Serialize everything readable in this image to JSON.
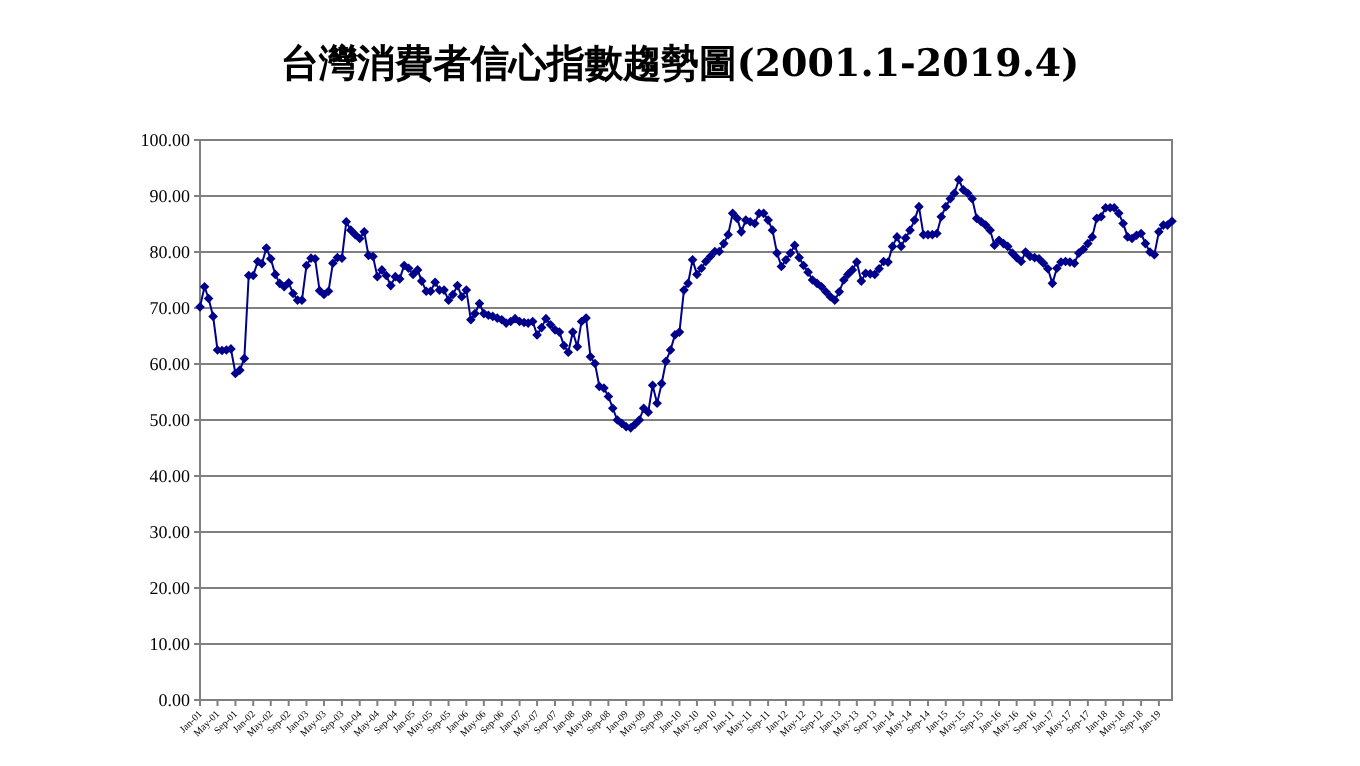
{
  "chart_data": {
    "type": "line",
    "title": "台灣消費者信心指數趨勢圖(2001.1-2019.4)",
    "xlim": [
      "2001-01",
      "2019-04"
    ],
    "xticks": [
      {
        "value": "2001-01",
        "label": "Jan-01"
      },
      {
        "value": "2001-05",
        "label": "May-01"
      },
      {
        "value": "2001-09",
        "label": "Sep-01"
      },
      {
        "value": "2002-01",
        "label": "Jan-02"
      },
      {
        "value": "2002-05",
        "label": "May-02"
      },
      {
        "value": "2002-09",
        "label": "Sep-02"
      },
      {
        "value": "2003-01",
        "label": "Jan-03"
      },
      {
        "value": "2003-05",
        "label": "May-03"
      },
      {
        "value": "2003-09",
        "label": "Sep-03"
      },
      {
        "value": "2004-01",
        "label": "Jan-04"
      },
      {
        "value": "2004-05",
        "label": "May-04"
      },
      {
        "value": "2004-09",
        "label": "Sep-04"
      },
      {
        "value": "2005-01",
        "label": "Jan-05"
      },
      {
        "value": "2005-05",
        "label": "May-05"
      },
      {
        "value": "2005-09",
        "label": "Sep-05"
      },
      {
        "value": "2006-01",
        "label": "Jan-06"
      },
      {
        "value": "2006-05",
        "label": "May-06"
      },
      {
        "value": "2006-09",
        "label": "Sep-06"
      },
      {
        "value": "2007-01",
        "label": "Jan-07"
      },
      {
        "value": "2007-05",
        "label": "May-07"
      },
      {
        "value": "2007-09",
        "label": "Sep-07"
      },
      {
        "value": "2008-01",
        "label": "Jan-08"
      },
      {
        "value": "2008-05",
        "label": "May-08"
      },
      {
        "value": "2008-09",
        "label": "Sep-08"
      },
      {
        "value": "2009-01",
        "label": "Jan-09"
      },
      {
        "value": "2009-05",
        "label": "May-09"
      },
      {
        "value": "2009-09",
        "label": "Sep-09"
      },
      {
        "value": "2010-01",
        "label": "Jan-10"
      },
      {
        "value": "2010-05",
        "label": "May-10"
      },
      {
        "value": "2010-09",
        "label": "Sep-10"
      },
      {
        "value": "2011-01",
        "label": "Jan-11"
      },
      {
        "value": "2011-05",
        "label": "May-11"
      },
      {
        "value": "2011-09",
        "label": "Sep-11"
      },
      {
        "value": "2012-01",
        "label": "Jan-12"
      },
      {
        "value": "2012-05",
        "label": "May-12"
      },
      {
        "value": "2012-09",
        "label": "Sep-12"
      },
      {
        "value": "2013-01",
        "label": "Jan-13"
      },
      {
        "value": "2013-05",
        "label": "May-13"
      },
      {
        "value": "2013-09",
        "label": "Sep-13"
      },
      {
        "value": "2014-01",
        "label": "Jan-14"
      },
      {
        "value": "2014-05",
        "label": "May-14"
      },
      {
        "value": "2014-09",
        "label": "Sep-14"
      },
      {
        "value": "2015-01",
        "label": "Jan-15"
      },
      {
        "value": "2015-05",
        "label": "May-15"
      },
      {
        "value": "2015-09",
        "label": "Sep-15"
      },
      {
        "value": "2016-01",
        "label": "Jan-16"
      },
      {
        "value": "2016-05",
        "label": "May-16"
      },
      {
        "value": "2016-09",
        "label": "Sep-16"
      },
      {
        "value": "2017-01",
        "label": "Jan-17"
      },
      {
        "value": "2017-05",
        "label": "May-17"
      },
      {
        "value": "2017-09",
        "label": "Sep-17"
      },
      {
        "value": "2018-01",
        "label": "Jan-18"
      },
      {
        "value": "2018-05",
        "label": "May-18"
      },
      {
        "value": "2018-09",
        "label": "Sep-18"
      },
      {
        "value": "2019-01",
        "label": "Jan-19"
      }
    ],
    "ylim": [
      0,
      100
    ],
    "yticks": [
      {
        "value": 0,
        "label": "0.00"
      },
      {
        "value": 10,
        "label": "10.00"
      },
      {
        "value": 20,
        "label": "20.00"
      },
      {
        "value": 30,
        "label": "30.00"
      },
      {
        "value": 40,
        "label": "40.00"
      },
      {
        "value": 50,
        "label": "50.00"
      },
      {
        "value": 60,
        "label": "60.00"
      },
      {
        "value": 70,
        "label": "70.00"
      },
      {
        "value": 80,
        "label": "80.00"
      },
      {
        "value": 90,
        "label": "90.00"
      },
      {
        "value": 100,
        "label": "100.00"
      }
    ],
    "grid": "y",
    "marker": "diamond",
    "line_style": "solid",
    "x": [
      "2001-01",
      "2001-02",
      "2001-03",
      "2001-04",
      "2001-05",
      "2001-06",
      "2001-07",
      "2001-08",
      "2001-09",
      "2001-10",
      "2001-11",
      "2001-12",
      "2002-01",
      "2002-02",
      "2002-03",
      "2002-04",
      "2002-05",
      "2002-06",
      "2002-07",
      "2002-08",
      "2002-09",
      "2002-10",
      "2002-11",
      "2002-12",
      "2003-01",
      "2003-02",
      "2003-03",
      "2003-04",
      "2003-05",
      "2003-06",
      "2003-07",
      "2003-08",
      "2003-09",
      "2003-10",
      "2003-11",
      "2003-12",
      "2004-01",
      "2004-02",
      "2004-03",
      "2004-04",
      "2004-05",
      "2004-06",
      "2004-07",
      "2004-08",
      "2004-09",
      "2004-10",
      "2004-11",
      "2004-12",
      "2005-01",
      "2005-02",
      "2005-03",
      "2005-04",
      "2005-05",
      "2005-06",
      "2005-07",
      "2005-08",
      "2005-09",
      "2005-10",
      "2005-11",
      "2005-12",
      "2006-01",
      "2006-02",
      "2006-03",
      "2006-04",
      "2006-05",
      "2006-06",
      "2006-07",
      "2006-08",
      "2006-09",
      "2006-10",
      "2006-11",
      "2006-12",
      "2007-01",
      "2007-02",
      "2007-03",
      "2007-04",
      "2007-05",
      "2007-06",
      "2007-07",
      "2007-08",
      "2007-09",
      "2007-10",
      "2007-11",
      "2007-12",
      "2008-01",
      "2008-02",
      "2008-03",
      "2008-04",
      "2008-05",
      "2008-06",
      "2008-07",
      "2008-08",
      "2008-09",
      "2008-10",
      "2008-11",
      "2008-12",
      "2009-01",
      "2009-02",
      "2009-03",
      "2009-04",
      "2009-05",
      "2009-06",
      "2009-07",
      "2009-08",
      "2009-09",
      "2009-10",
      "2009-11",
      "2009-12",
      "2010-01",
      "2010-02",
      "2010-03",
      "2010-04",
      "2010-05",
      "2010-06",
      "2010-07",
      "2010-08",
      "2010-09",
      "2010-10",
      "2010-11",
      "2010-12",
      "2011-01",
      "2011-02",
      "2011-03",
      "2011-04",
      "2011-05",
      "2011-06",
      "2011-07",
      "2011-08",
      "2011-09",
      "2011-10",
      "2011-11",
      "2011-12",
      "2012-01",
      "2012-02",
      "2012-03",
      "2012-04",
      "2012-05",
      "2012-06",
      "2012-07",
      "2012-08",
      "2012-09",
      "2012-10",
      "2012-11",
      "2012-12",
      "2013-01",
      "2013-02",
      "2013-03",
      "2013-04",
      "2013-05",
      "2013-06",
      "2013-07",
      "2013-08",
      "2013-09",
      "2013-10",
      "2013-11",
      "2013-12",
      "2014-01",
      "2014-02",
      "2014-03",
      "2014-04",
      "2014-05",
      "2014-06",
      "2014-07",
      "2014-08",
      "2014-09",
      "2014-10",
      "2014-11",
      "2014-12",
      "2015-01",
      "2015-02",
      "2015-03",
      "2015-04",
      "2015-05",
      "2015-06",
      "2015-07",
      "2015-08",
      "2015-09",
      "2015-10",
      "2015-11",
      "2015-12",
      "2016-01",
      "2016-02",
      "2016-03",
      "2016-04",
      "2016-05",
      "2016-06",
      "2016-07",
      "2016-08",
      "2016-09",
      "2016-10",
      "2016-11",
      "2016-12",
      "2017-01",
      "2017-02",
      "2017-03",
      "2017-04",
      "2017-05",
      "2017-06",
      "2017-07",
      "2017-08",
      "2017-09",
      "2017-10",
      "2017-11",
      "2017-12",
      "2018-01",
      "2018-02",
      "2018-03",
      "2018-04",
      "2018-05",
      "2018-06",
      "2018-07",
      "2018-08",
      "2018-09",
      "2018-10",
      "2018-11",
      "2018-12",
      "2019-01",
      "2019-02",
      "2019-03",
      "2019-04"
    ],
    "series": [
      {
        "color": "#00008b",
        "values": [
          70.2,
          73.8,
          71.7,
          68.5,
          62.5,
          62.4,
          62.5,
          62.7,
          58.3,
          58.9,
          61,
          75.8,
          75.8,
          78.3,
          77.9,
          80.7,
          78.8,
          76,
          74.4,
          73.8,
          74.5,
          72.6,
          71.4,
          71.4,
          77.6,
          78.9,
          78.8,
          73.1,
          72.4,
          73,
          78,
          79,
          78.9,
          85.4,
          83.9,
          83.1,
          82.4,
          83.6,
          79.4,
          79.2,
          75.6,
          76.8,
          75.8,
          74,
          75.6,
          75.2,
          77.6,
          77.1,
          76,
          76.8,
          74.8,
          73,
          73,
          74.6,
          73.2,
          73.2,
          71.4,
          72.4,
          74,
          72,
          73.2,
          67.9,
          69,
          70.8,
          69,
          68.7,
          68.5,
          68.2,
          67.9,
          67.3,
          67.6,
          68.1,
          67.6,
          67.4,
          67.3,
          67.6,
          65.2,
          66.5,
          68.1,
          67,
          66.1,
          65.7,
          63.3,
          62.1,
          65.7,
          63.1,
          67.6,
          68.2,
          61.3,
          60.1,
          56,
          55.7,
          54.2,
          52.1,
          50,
          49.4,
          48.8,
          48.6,
          49.2,
          50,
          52.1,
          51.4,
          56.2,
          53,
          56.5,
          60.5,
          62.5,
          65.2,
          65.7,
          73.2,
          74.4,
          78.6,
          76,
          77.1,
          78.3,
          79.2,
          80.1,
          80.1,
          81.5,
          83.1,
          86.9,
          86,
          83.6,
          85.7,
          85.4,
          85.1,
          86.9,
          86.9,
          85.7,
          83.9,
          79.8,
          77.4,
          78.6,
          79.8,
          81.2,
          79,
          77.6,
          76.4,
          75,
          74.4,
          73.8,
          72.9,
          72,
          71.4,
          72.9,
          75,
          76,
          76.8,
          78.2,
          74.8,
          76.2,
          76.1,
          76,
          77,
          78.3,
          78.2,
          81,
          82.7,
          81,
          82.5,
          83.9,
          85.7,
          88.1,
          83.1,
          83.1,
          83.1,
          83.3,
          86.3,
          88.1,
          89.5,
          90.5,
          92.9,
          91.1,
          90.5,
          89.5,
          86,
          85.4,
          84.8,
          83.9,
          81.2,
          82.1,
          81.5,
          81,
          79.8,
          79,
          78.3,
          80,
          79.2,
          79,
          78.8,
          78,
          77,
          74.4,
          77.1,
          78.2,
          78.3,
          78.2,
          78,
          79.8,
          80.5,
          81.5,
          82.7,
          86,
          86.3,
          87.9,
          87.9,
          87.9,
          86.9,
          85.1,
          82.7,
          82.4,
          83,
          83.3,
          81.5,
          80,
          79.5,
          83.6,
          84.8,
          84.8,
          85.5
        ]
      }
    ]
  }
}
